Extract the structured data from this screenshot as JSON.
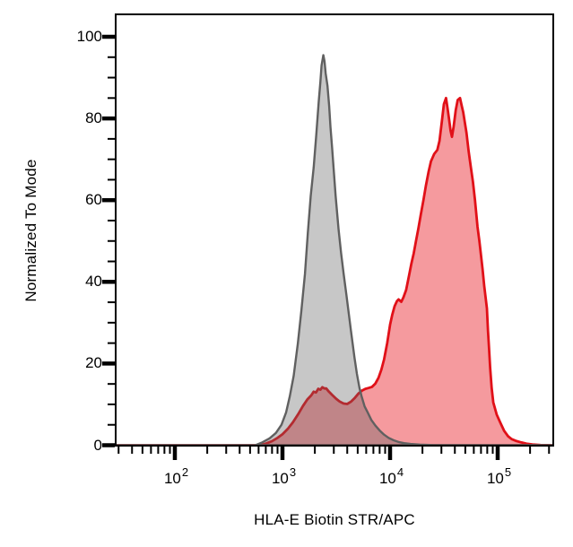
{
  "chart_data": {
    "type": "area",
    "subtype": "flow-cytometry-histogram-overlay",
    "title": "",
    "xlabel": "HLA-E Biotin STR/APC",
    "ylabel": "Normalized To Mode",
    "x_scale": "log",
    "x_range": [
      28,
      330000
    ],
    "y_range": [
      0,
      106
    ],
    "grid": "off",
    "legend": "none",
    "frame_color": "#000000",
    "background_color": "#ffffff",
    "x_axis": {
      "major_ticks": [
        {
          "value": 100,
          "base": "10",
          "exp": "2"
        },
        {
          "value": 1000,
          "base": "10",
          "exp": "3"
        },
        {
          "value": 10000,
          "base": "10",
          "exp": "4"
        },
        {
          "value": 100000,
          "base": "10",
          "exp": "5"
        }
      ],
      "minor_ticks": [
        30,
        40,
        50,
        60,
        70,
        80,
        90,
        200,
        300,
        400,
        500,
        600,
        700,
        800,
        900,
        2000,
        3000,
        4000,
        5000,
        6000,
        7000,
        8000,
        9000,
        20000,
        30000,
        40000,
        50000,
        60000,
        70000,
        80000,
        90000,
        200000,
        300000
      ]
    },
    "y_axis": {
      "major_ticks": [
        {
          "value": 0,
          "label": "0"
        },
        {
          "value": 20,
          "label": "20"
        },
        {
          "value": 40,
          "label": "40"
        },
        {
          "value": 60,
          "label": "60"
        },
        {
          "value": 80,
          "label": "80"
        },
        {
          "value": 100,
          "label": "100"
        }
      ],
      "minor_ticks": [
        5,
        10,
        15,
        25,
        30,
        35,
        45,
        50,
        55,
        65,
        70,
        75,
        85,
        90,
        95
      ]
    },
    "series": [
      {
        "name": "red-histogram",
        "draw_order": 1,
        "stroke": "#e11018",
        "stroke_width": 2.8,
        "fill": "rgba(230,15,25,0.42)",
        "peak_summary": {
          "main_peaks_x": [
            33100,
            44700
          ],
          "main_peaks_y": [
            85,
            85
          ],
          "dip_y": 75.5,
          "minor_bump": {
            "x": 2350,
            "y": 14
          }
        },
        "points": [
          [
            28,
            0
          ],
          [
            620,
            0
          ],
          [
            700,
            0.4
          ],
          [
            800,
            1
          ],
          [
            900,
            1.8
          ],
          [
            1000,
            2.7
          ],
          [
            1120,
            4
          ],
          [
            1250,
            5.6
          ],
          [
            1400,
            7.6
          ],
          [
            1550,
            9.6
          ],
          [
            1700,
            11.2
          ],
          [
            1850,
            12.2
          ],
          [
            1950,
            13.1
          ],
          [
            2050,
            12.9
          ],
          [
            2150,
            13.8
          ],
          [
            2250,
            13.6
          ],
          [
            2350,
            14.2
          ],
          [
            2450,
            13.9
          ],
          [
            2550,
            13.9
          ],
          [
            2700,
            13.1
          ],
          [
            2900,
            12.3
          ],
          [
            3150,
            11.4
          ],
          [
            3400,
            10.7
          ],
          [
            3700,
            10.2
          ],
          [
            4000,
            10.1
          ],
          [
            4350,
            10.7
          ],
          [
            4700,
            11.6
          ],
          [
            5100,
            12.7
          ],
          [
            5500,
            13.4
          ],
          [
            5900,
            13.8
          ],
          [
            6300,
            14
          ],
          [
            6800,
            14.3
          ],
          [
            7300,
            15.1
          ],
          [
            7800,
            16.5
          ],
          [
            8300,
            18.5
          ],
          [
            8800,
            21
          ],
          [
            9400,
            25
          ],
          [
            10000,
            29.5
          ],
          [
            10500,
            32
          ],
          [
            11000,
            34
          ],
          [
            11600,
            35.3
          ],
          [
            12000,
            35.7
          ],
          [
            12700,
            35.1
          ],
          [
            13300,
            36.2
          ],
          [
            14100,
            38
          ],
          [
            15000,
            41.5
          ],
          [
            15800,
            44.5
          ],
          [
            16600,
            47
          ],
          [
            17400,
            50
          ],
          [
            18300,
            53
          ],
          [
            19300,
            56.5
          ],
          [
            20400,
            60
          ],
          [
            21500,
            63.5
          ],
          [
            22800,
            67
          ],
          [
            24000,
            69.5
          ],
          [
            25700,
            71.3
          ],
          [
            27500,
            72.3
          ],
          [
            28800,
            74.5
          ],
          [
            30200,
            79
          ],
          [
            31600,
            83.5
          ],
          [
            33100,
            85
          ],
          [
            34200,
            82.5
          ],
          [
            35500,
            79.5
          ],
          [
            36500,
            77
          ],
          [
            37600,
            75.5
          ],
          [
            39000,
            78
          ],
          [
            40700,
            82
          ],
          [
            42500,
            84.5
          ],
          [
            44700,
            85
          ],
          [
            46000,
            83.5
          ],
          [
            47900,
            81.5
          ],
          [
            49500,
            79
          ],
          [
            51300,
            76.5
          ],
          [
            53700,
            72
          ],
          [
            56000,
            68.5
          ],
          [
            58900,
            64.5
          ],
          [
            61500,
            60
          ],
          [
            63100,
            57
          ],
          [
            65000,
            53.5
          ],
          [
            67600,
            50
          ],
          [
            70000,
            46.5
          ],
          [
            72400,
            43
          ],
          [
            75000,
            39
          ],
          [
            79400,
            33.5
          ],
          [
            81300,
            28
          ],
          [
            83000,
            24
          ],
          [
            85100,
            19
          ],
          [
            88000,
            14
          ],
          [
            91000,
            10.5
          ],
          [
            98000,
            7.5
          ],
          [
            106000,
            5.5
          ],
          [
            115000,
            3.5
          ],
          [
            125000,
            2.2
          ],
          [
            135000,
            1.5
          ],
          [
            150000,
            1
          ],
          [
            165000,
            0.7
          ],
          [
            185000,
            0.4
          ],
          [
            210000,
            0.2
          ],
          [
            250000,
            0.05
          ],
          [
            330000,
            0
          ]
        ]
      },
      {
        "name": "gray-histogram",
        "draw_order": 2,
        "stroke": "#606060",
        "stroke_width": 2.4,
        "fill": "rgba(95,95,95,0.35)",
        "peak_summary": {
          "main_peaks_x": [
            2400
          ],
          "main_peaks_y": [
            95.5
          ]
        },
        "points": [
          [
            28,
            0
          ],
          [
            560,
            0
          ],
          [
            650,
            0.7
          ],
          [
            760,
            1.7
          ],
          [
            870,
            3
          ],
          [
            980,
            5
          ],
          [
            1080,
            8
          ],
          [
            1170,
            12
          ],
          [
            1270,
            17
          ],
          [
            1390,
            25
          ],
          [
            1500,
            33
          ],
          [
            1620,
            42
          ],
          [
            1720,
            52
          ],
          [
            1830,
            61
          ],
          [
            1950,
            68
          ],
          [
            2060,
            76
          ],
          [
            2170,
            84
          ],
          [
            2250,
            89
          ],
          [
            2310,
            93
          ],
          [
            2400,
            95.5
          ],
          [
            2460,
            94
          ],
          [
            2520,
            91
          ],
          [
            2620,
            88
          ],
          [
            2720,
            83
          ],
          [
            2790,
            78
          ],
          [
            2890,
            73
          ],
          [
            3000,
            67
          ],
          [
            3120,
            61
          ],
          [
            3320,
            53
          ],
          [
            3510,
            47
          ],
          [
            3700,
            42
          ],
          [
            3920,
            37
          ],
          [
            4120,
            32.5
          ],
          [
            4330,
            28
          ],
          [
            4670,
            21.5
          ],
          [
            4920,
            17.5
          ],
          [
            5200,
            14
          ],
          [
            5430,
            12
          ],
          [
            5800,
            9.5
          ],
          [
            6200,
            8
          ],
          [
            6700,
            6.2
          ],
          [
            7300,
            4.8
          ],
          [
            8000,
            3.6
          ],
          [
            8800,
            2.6
          ],
          [
            9700,
            1.8
          ],
          [
            10800,
            1.2
          ],
          [
            12000,
            0.8
          ],
          [
            13500,
            0.5
          ],
          [
            15500,
            0.3
          ],
          [
            19000,
            0.15
          ],
          [
            25000,
            0.05
          ],
          [
            330000,
            0
          ]
        ]
      }
    ]
  }
}
